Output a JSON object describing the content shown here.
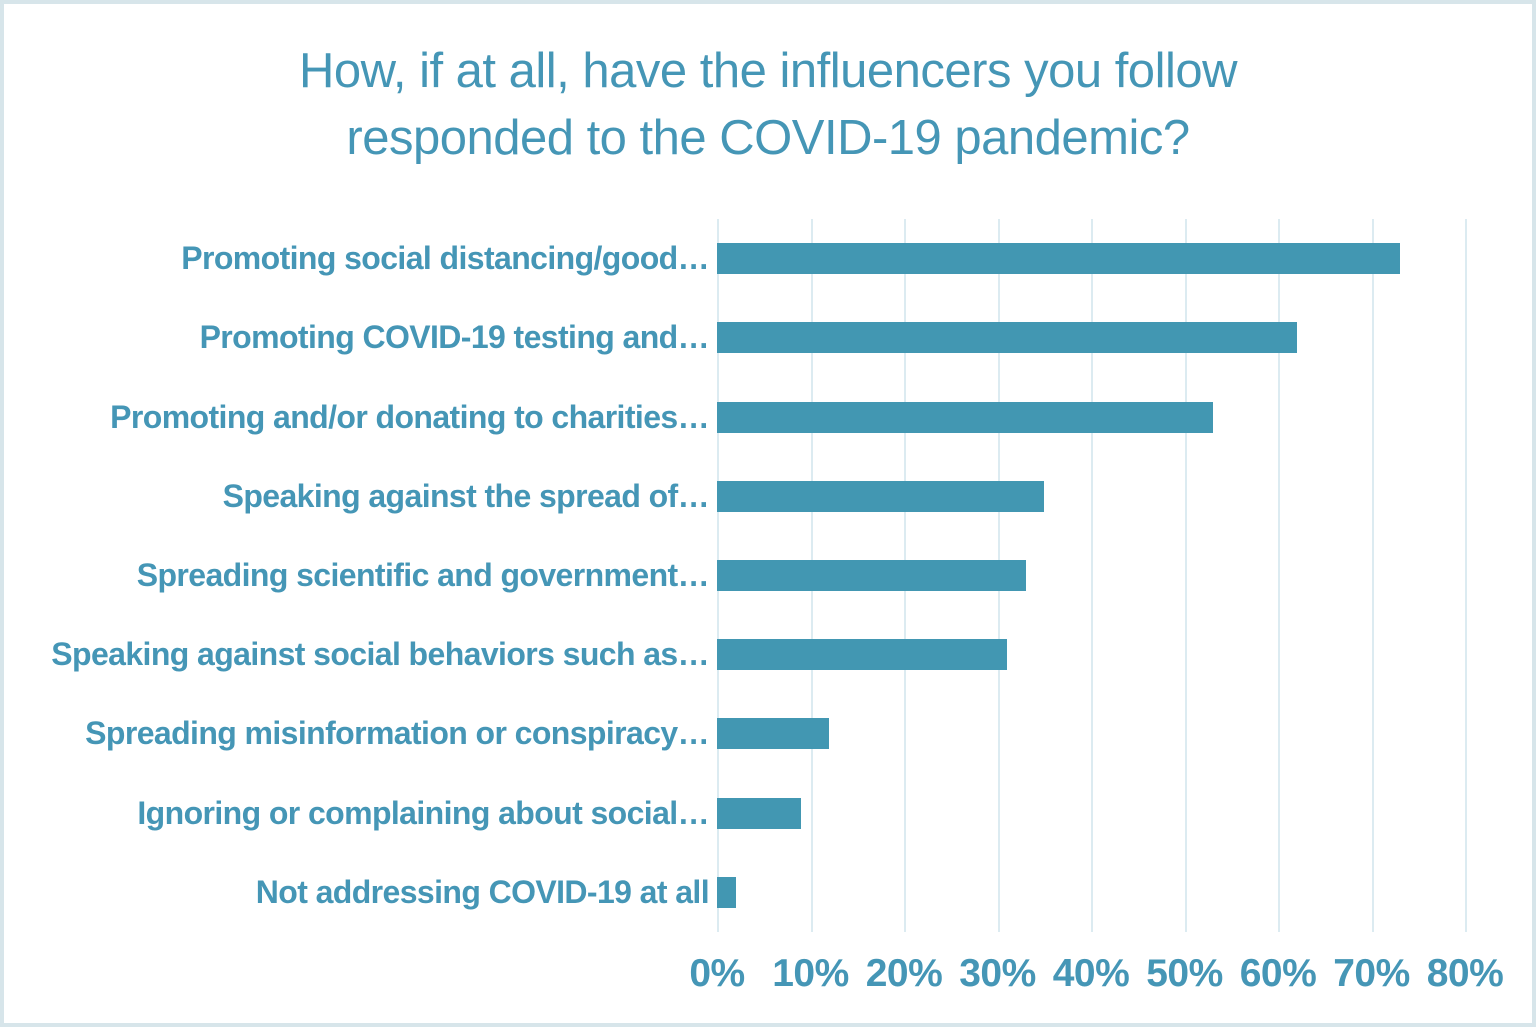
{
  "colors": {
    "bar_fill": "#4297b2",
    "text_teal": "#4596b6",
    "gridline": "#dcebf1",
    "frame_border": "#d7e5ea",
    "background": "#ffffff"
  },
  "title": {
    "lines": [
      "How, if at all, have the influencers you follow",
      "responded to the COVID-19 pandemic?"
    ]
  },
  "chart_data": {
    "type": "bar",
    "orientation": "horizontal",
    "title": "How, if at all, have the influencers you follow responded to the COVID-19 pandemic?",
    "categories": [
      "Promoting social distancing/good…",
      "Promoting COVID-19 testing and…",
      "Promoting and/or donating to charities…",
      "Speaking against the spread of…",
      "Spreading scientific and government…",
      "Speaking against social behaviors such as…",
      "Spreading misinformation or conspiracy…",
      "Ignoring or complaining about social…",
      "Not addressing COVID-19 at all"
    ],
    "values": [
      73,
      62,
      53,
      35,
      33,
      31,
      12,
      9,
      2
    ],
    "unit": "%",
    "xlabel": "",
    "ylabel": "",
    "xlim": [
      0,
      80
    ],
    "x_ticks": [
      "0%",
      "10%",
      "20%",
      "30%",
      "40%",
      "50%",
      "60%",
      "70%",
      "80%"
    ],
    "grid": "vertical-only",
    "legend": "none"
  }
}
